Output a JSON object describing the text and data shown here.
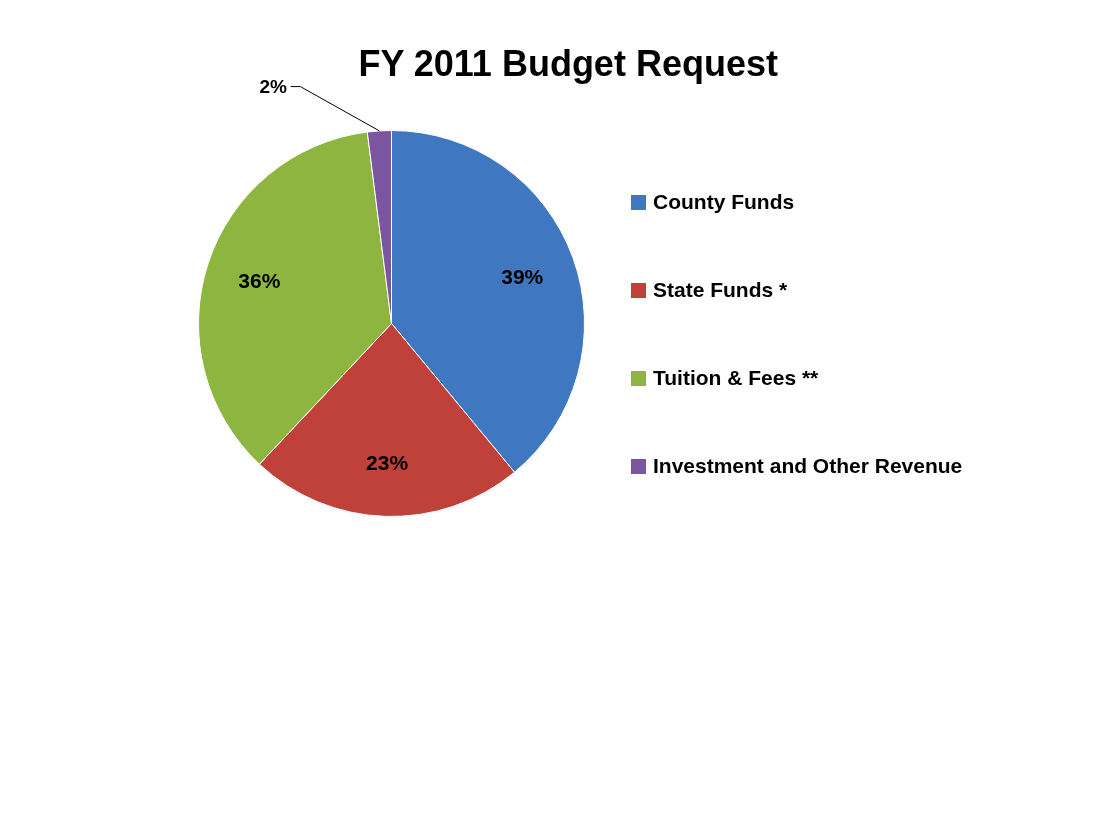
{
  "chart_data": {
    "type": "pie",
    "title": "FY 2011 Budget Request",
    "categories": [
      "County Funds",
      "State Funds *",
      "Tuition & Fees **",
      "Investment and Other Revenue"
    ],
    "values": [
      39,
      23,
      36,
      2
    ],
    "colors": [
      "#3f77c1",
      "#c0403a",
      "#8db53f",
      "#7b55a0"
    ],
    "value_labels": [
      "39%",
      "23%",
      "36%",
      "2%"
    ],
    "legend": "right"
  }
}
